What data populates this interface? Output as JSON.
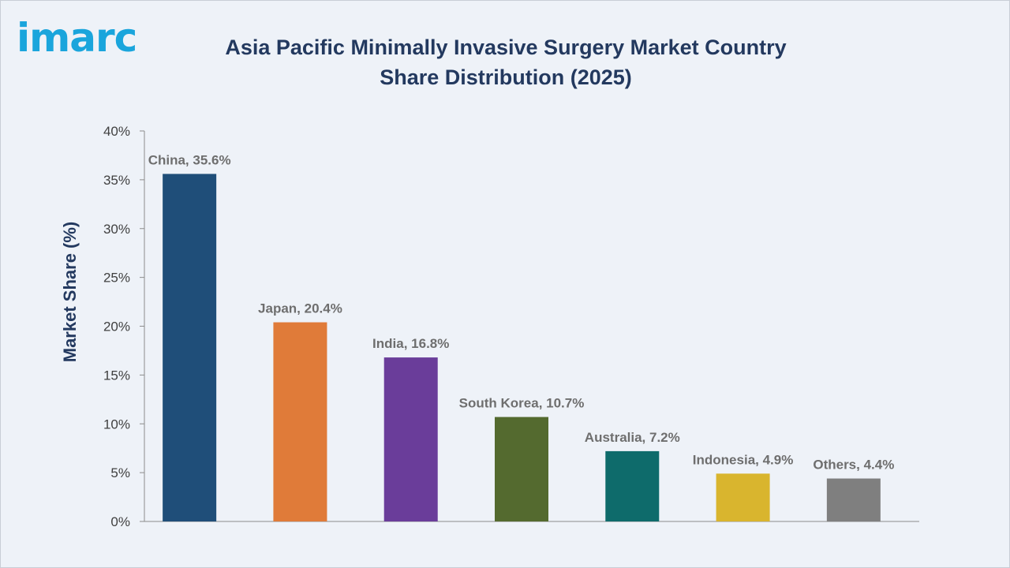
{
  "brand": {
    "logo_text": "imarc",
    "logo_color": "#1aa5dc"
  },
  "chart_data": {
    "type": "bar",
    "title": "Asia Pacific Minimally Invasive Surgery Market Country Share Distribution (2025)",
    "xlabel": "",
    "ylabel": "Market Share (%)",
    "categories": [
      "China",
      "Japan",
      "India",
      "South Korea",
      "Australia",
      "Indonesia",
      "Others"
    ],
    "values": [
      35.6,
      20.4,
      16.8,
      10.7,
      7.2,
      4.9,
      4.4
    ],
    "data_labels": [
      "China, 35.6%",
      "Japan, 20.4%",
      "India, 16.8%",
      "South Korea, 10.7%",
      "Australia, 7.2%",
      "Indonesia, 4.9%",
      "Others, 4.4%"
    ],
    "colors": [
      "#1f4e79",
      "#e07b39",
      "#6a3d9a",
      "#546a2f",
      "#0e6b6b",
      "#d9b52e",
      "#7f7f7f"
    ],
    "ylim": [
      0,
      40
    ],
    "yticks": [
      0,
      5,
      10,
      15,
      20,
      25,
      30,
      35,
      40
    ],
    "ytick_labels": [
      "0%",
      "5%",
      "10%",
      "15%",
      "20%",
      "25%",
      "30%",
      "35%",
      "40%"
    ],
    "grid": false,
    "legend": "none"
  }
}
